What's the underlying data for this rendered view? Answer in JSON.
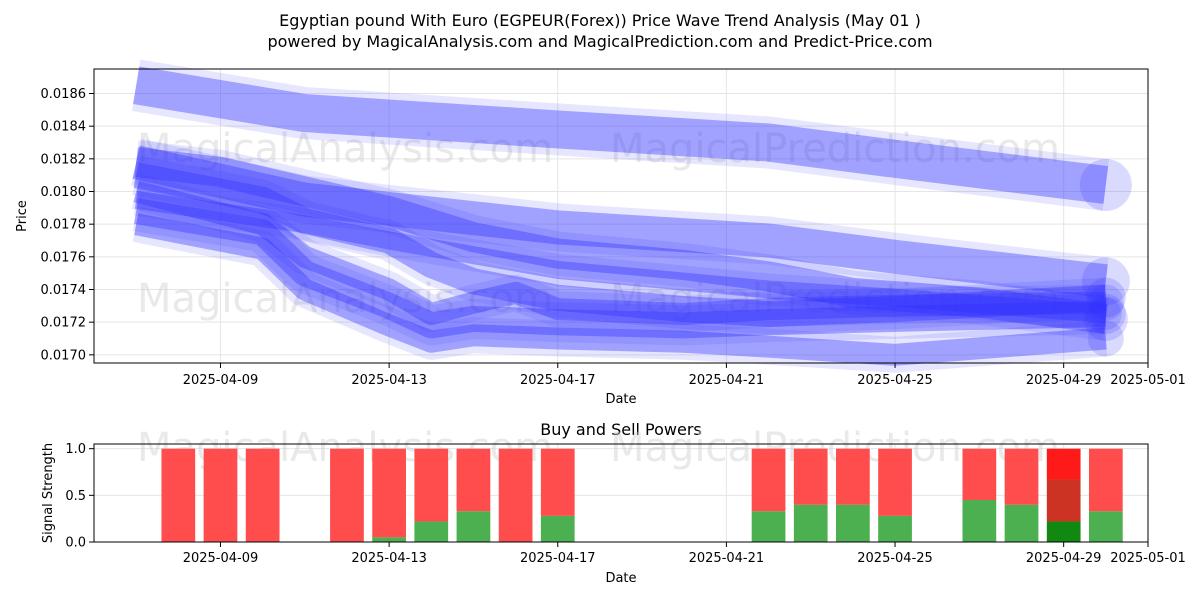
{
  "title_line1": "Egyptian pound With Euro (EGPEUR(Forex)) Price Wave Trend Analysis (May 01 )",
  "title_line2": "powered by MagicalAnalysis.com and MagicalPrediction.com and Predict-Price.com",
  "watermarks": [
    "MagicalAnalysis.com",
    "MagicalPrediction.com"
  ],
  "colors": {
    "wave": "#3333ff",
    "buy": "#4caf50",
    "sell": "#ff4d4d",
    "buy_strong": "#118811",
    "sell_strong": "#ff1a1a",
    "sell_mid": "#cc3322"
  },
  "chart_data": [
    {
      "type": "line",
      "title": "",
      "xlabel": "Date",
      "ylabel": "Price",
      "x_tick_labels": [
        "2025-04-09",
        "2025-04-13",
        "2025-04-17",
        "2025-04-21",
        "2025-04-25",
        "2025-04-29",
        "2025-05-01"
      ],
      "y_tick_labels": [
        "0.0170",
        "0.0172",
        "0.0174",
        "0.0176",
        "0.0178",
        "0.0180",
        "0.0182",
        "0.0184",
        "0.0186"
      ],
      "xlim": [
        "2025-04-06",
        "2025-05-01"
      ],
      "ylim": [
        0.01695,
        0.01875
      ],
      "grid": true,
      "series": [
        {
          "x": [
            "2025-04-07",
            "2025-04-11",
            "2025-04-17",
            "2025-04-22",
            "2025-04-25",
            "2025-04-30"
          ],
          "values": [
            0.01865,
            0.01848,
            0.01838,
            0.0183,
            0.0182,
            0.01804
          ]
        },
        {
          "x": [
            "2025-04-07",
            "2025-04-11",
            "2025-04-17",
            "2025-04-22",
            "2025-04-25",
            "2025-04-30"
          ],
          "values": [
            0.01818,
            0.01795,
            0.01778,
            0.0177,
            0.0176,
            0.01745
          ]
        },
        {
          "x": [
            "2025-04-07",
            "2025-04-09",
            "2025-04-11",
            "2025-04-13",
            "2025-04-15",
            "2025-04-17",
            "2025-04-20",
            "2025-04-22",
            "2025-04-24",
            "2025-04-27",
            "2025-04-30"
          ],
          "values": [
            0.01818,
            0.01812,
            0.018,
            0.01788,
            0.01772,
            0.01762,
            0.01755,
            0.01748,
            0.01738,
            0.01732,
            0.01722
          ]
        },
        {
          "x": [
            "2025-04-07",
            "2025-04-10",
            "2025-04-11",
            "2025-04-13",
            "2025-04-14",
            "2025-04-15",
            "2025-04-17",
            "2025-04-20",
            "2025-04-22",
            "2025-04-25",
            "2025-04-30"
          ],
          "values": [
            0.0181,
            0.01795,
            0.01782,
            0.0177,
            0.01755,
            0.01745,
            0.01735,
            0.01728,
            0.01725,
            0.01728,
            0.01735
          ]
        },
        {
          "x": [
            "2025-04-07",
            "2025-04-10",
            "2025-04-11",
            "2025-04-13",
            "2025-04-14",
            "2025-04-15",
            "2025-04-16",
            "2025-04-17",
            "2025-04-20",
            "2025-04-22",
            "2025-04-25",
            "2025-04-30"
          ],
          "values": [
            0.018,
            0.0178,
            0.0176,
            0.0174,
            0.01725,
            0.01732,
            0.01738,
            0.01728,
            0.01725,
            0.01728,
            0.0173,
            0.01732
          ]
        },
        {
          "x": [
            "2025-04-07",
            "2025-04-10",
            "2025-04-11",
            "2025-04-13",
            "2025-04-14",
            "2025-04-15",
            "2025-04-17",
            "2025-04-20",
            "2025-04-22",
            "2025-04-25",
            "2025-04-30"
          ],
          "values": [
            0.01788,
            0.01775,
            0.0175,
            0.0173,
            0.01718,
            0.01722,
            0.0172,
            0.01718,
            0.0172,
            0.01722,
            0.01725
          ]
        },
        {
          "x": [
            "2025-04-07",
            "2025-04-10",
            "2025-04-11",
            "2025-04-13",
            "2025-04-14",
            "2025-04-15",
            "2025-04-17",
            "2025-04-20",
            "2025-04-22",
            "2025-04-25",
            "2025-04-30"
          ],
          "values": [
            0.0178,
            0.01765,
            0.0174,
            0.01718,
            0.01708,
            0.01712,
            0.0171,
            0.01708,
            0.01705,
            0.017,
            0.0171
          ]
        },
        {
          "x": [
            "2025-04-07",
            "2025-04-11",
            "2025-04-13",
            "2025-04-17",
            "2025-04-22",
            "2025-04-25",
            "2025-04-30"
          ],
          "values": [
            0.01795,
            0.0178,
            0.0177,
            0.01752,
            0.0174,
            0.01735,
            0.01725
          ]
        }
      ]
    },
    {
      "type": "bar",
      "title": "Buy and Sell Powers",
      "xlabel": "Date",
      "ylabel": "Signal Strength",
      "x_tick_labels": [
        "2025-04-09",
        "2025-04-13",
        "2025-04-17",
        "2025-04-21",
        "2025-04-25",
        "2025-04-29",
        "2025-05-01"
      ],
      "y_tick_labels": [
        "0.0",
        "0.5",
        "1.0"
      ],
      "ylim": [
        0,
        1.05
      ],
      "grid": true,
      "categories": [
        "2025-04-08",
        "2025-04-09",
        "2025-04-10",
        "2025-04-12",
        "2025-04-13",
        "2025-04-14",
        "2025-04-15",
        "2025-04-16",
        "2025-04-17",
        "2025-04-20",
        "2025-04-22",
        "2025-04-23",
        "2025-04-24",
        "2025-04-25",
        "2025-04-27",
        "2025-04-28",
        "2025-04-29",
        "2025-04-30"
      ],
      "series": [
        {
          "name": "Buy",
          "values": [
            0,
            0,
            0,
            0,
            0.05,
            0.22,
            0.33,
            0,
            0.28,
            0,
            0.33,
            0.4,
            0.4,
            0.28,
            0.45,
            0.4,
            0.22,
            0.33
          ]
        },
        {
          "name": "Sell",
          "values": [
            1,
            1,
            1,
            1,
            0.95,
            0.78,
            0.67,
            1,
            0.72,
            0,
            0.67,
            0.6,
            0.6,
            0.72,
            0.55,
            0.6,
            0.78,
            0.67
          ]
        }
      ],
      "note_bar_2025_04_29": {
        "buy": 0.22,
        "sell_lower": 0.45,
        "sell_upper": 0.33
      }
    }
  ]
}
